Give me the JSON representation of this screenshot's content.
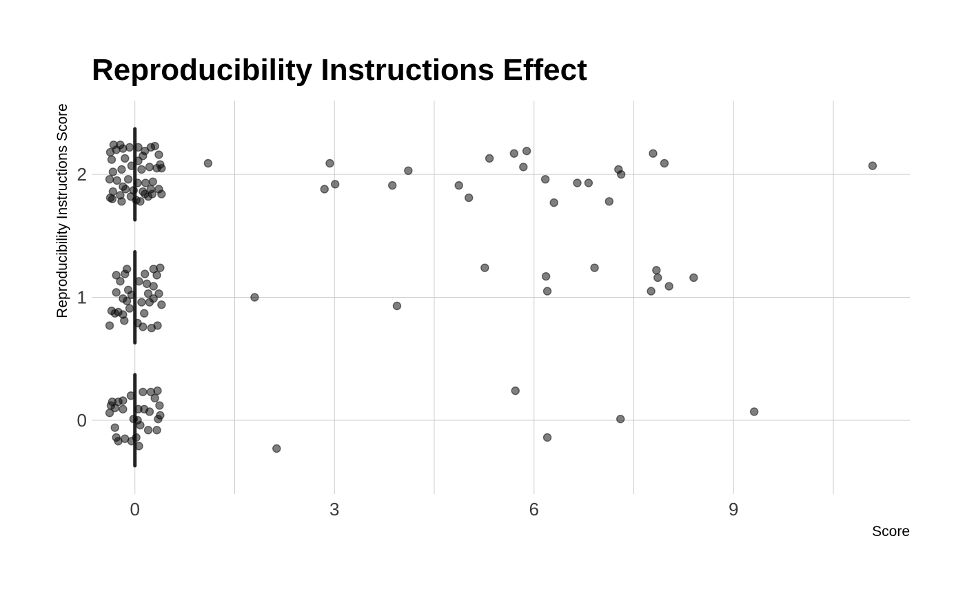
{
  "chart_data": {
    "type": "scatter",
    "title": "Reproducibility Instructions Effect",
    "xlabel": "Score",
    "ylabel": "Reproducibility Instructions Score",
    "xlim": [
      -0.65,
      11.65
    ],
    "ylim": [
      -0.6,
      2.6
    ],
    "x_major_ticks": [
      0,
      3,
      6,
      9
    ],
    "x_minor_grid": [
      1.5,
      4.5,
      7.5,
      10.5
    ],
    "y_ticks": [
      0,
      1,
      2
    ],
    "grid": true,
    "legend": "none",
    "point_color": "#000000",
    "point_opacity": 0.5,
    "median_bar_color": "#222222",
    "median_bars": [
      {
        "x": 0,
        "y_from": -0.37,
        "y_to": 0.37
      },
      {
        "x": 0,
        "y_from": 0.63,
        "y_to": 1.37
      },
      {
        "x": 0,
        "y_from": 1.63,
        "y_to": 2.37
      }
    ],
    "points": [
      {
        "x": 1.1,
        "y": 2.09
      },
      {
        "x": 2.85,
        "y": 1.88
      },
      {
        "x": 2.93,
        "y": 2.09
      },
      {
        "x": 3.01,
        "y": 1.92
      },
      {
        "x": 3.87,
        "y": 1.91
      },
      {
        "x": 4.11,
        "y": 2.03
      },
      {
        "x": 4.87,
        "y": 1.91
      },
      {
        "x": 5.02,
        "y": 1.81
      },
      {
        "x": 5.33,
        "y": 2.13
      },
      {
        "x": 5.7,
        "y": 2.17
      },
      {
        "x": 5.84,
        "y": 2.06
      },
      {
        "x": 5.89,
        "y": 2.19
      },
      {
        "x": 6.17,
        "y": 1.96
      },
      {
        "x": 6.3,
        "y": 1.77
      },
      {
        "x": 6.65,
        "y": 1.93
      },
      {
        "x": 6.82,
        "y": 1.93
      },
      {
        "x": 7.13,
        "y": 1.78
      },
      {
        "x": 7.27,
        "y": 2.04
      },
      {
        "x": 7.31,
        "y": 2.0
      },
      {
        "x": 7.79,
        "y": 2.17
      },
      {
        "x": 7.96,
        "y": 2.09
      },
      {
        "x": 11.09,
        "y": 2.07
      },
      {
        "x": 1.8,
        "y": 1.0
      },
      {
        "x": 3.94,
        "y": 0.93
      },
      {
        "x": 5.26,
        "y": 1.24
      },
      {
        "x": 6.18,
        "y": 1.17
      },
      {
        "x": 6.2,
        "y": 1.05
      },
      {
        "x": 6.91,
        "y": 1.24
      },
      {
        "x": 7.76,
        "y": 1.05
      },
      {
        "x": 7.84,
        "y": 1.22
      },
      {
        "x": 7.86,
        "y": 1.16
      },
      {
        "x": 8.03,
        "y": 1.09
      },
      {
        "x": 8.4,
        "y": 1.16
      },
      {
        "x": 2.13,
        "y": -0.23
      },
      {
        "x": 5.72,
        "y": 0.24
      },
      {
        "x": 6.2,
        "y": -0.14
      },
      {
        "x": 7.3,
        "y": 0.01
      },
      {
        "x": 9.31,
        "y": 0.07
      },
      {
        "x": -0.37,
        "y": 2.18
      },
      {
        "x": -0.32,
        "y": 2.24
      },
      {
        "x": -0.22,
        "y": 2.24
      },
      {
        "x": -0.28,
        "y": 2.2
      },
      {
        "x": -0.18,
        "y": 2.21
      },
      {
        "x": -0.08,
        "y": 2.22
      },
      {
        "x": 0.05,
        "y": 2.22
      },
      {
        "x": 0.15,
        "y": 2.19
      },
      {
        "x": 0.24,
        "y": 2.22
      },
      {
        "x": 0.3,
        "y": 2.23
      },
      {
        "x": 0.36,
        "y": 2.16
      },
      {
        "x": -0.35,
        "y": 2.12
      },
      {
        "x": -0.15,
        "y": 2.13
      },
      {
        "x": 0.05,
        "y": 2.11
      },
      {
        "x": 0.12,
        "y": 2.15
      },
      {
        "x": 0.38,
        "y": 2.08
      },
      {
        "x": -0.33,
        "y": 2.02
      },
      {
        "x": -0.2,
        "y": 2.04
      },
      {
        "x": -0.05,
        "y": 2.07
      },
      {
        "x": 0.1,
        "y": 2.04
      },
      {
        "x": 0.22,
        "y": 2.06
      },
      {
        "x": 0.33,
        "y": 2.05
      },
      {
        "x": 0.4,
        "y": 2.05
      },
      {
        "x": -0.38,
        "y": 1.96
      },
      {
        "x": -0.27,
        "y": 1.95
      },
      {
        "x": -0.1,
        "y": 1.96
      },
      {
        "x": 0.04,
        "y": 1.93
      },
      {
        "x": 0.16,
        "y": 1.93
      },
      {
        "x": 0.27,
        "y": 1.94
      },
      {
        "x": -0.18,
        "y": 1.9
      },
      {
        "x": -0.33,
        "y": 1.86
      },
      {
        "x": -0.14,
        "y": 1.88
      },
      {
        "x": -0.02,
        "y": 1.87
      },
      {
        "x": 0.12,
        "y": 1.86
      },
      {
        "x": 0.24,
        "y": 1.88
      },
      {
        "x": 0.36,
        "y": 1.88
      },
      {
        "x": -0.37,
        "y": 1.81
      },
      {
        "x": -0.22,
        "y": 1.83
      },
      {
        "x": -0.06,
        "y": 1.82
      },
      {
        "x": 0.15,
        "y": 1.84
      },
      {
        "x": 0.26,
        "y": 1.84
      },
      {
        "x": 0.4,
        "y": 1.84
      },
      {
        "x": -0.34,
        "y": 1.8
      },
      {
        "x": -0.2,
        "y": 1.78
      },
      {
        "x": 0.02,
        "y": 1.79
      },
      {
        "x": 0.08,
        "y": 1.78
      },
      {
        "x": 0.2,
        "y": 1.82
      },
      {
        "x": -0.12,
        "y": 1.23
      },
      {
        "x": 0.28,
        "y": 1.23
      },
      {
        "x": 0.38,
        "y": 1.24
      },
      {
        "x": -0.28,
        "y": 1.18
      },
      {
        "x": -0.15,
        "y": 1.19
      },
      {
        "x": 0.15,
        "y": 1.19
      },
      {
        "x": 0.33,
        "y": 1.18
      },
      {
        "x": -0.22,
        "y": 1.13
      },
      {
        "x": 0.06,
        "y": 1.13
      },
      {
        "x": 0.18,
        "y": 1.11
      },
      {
        "x": 0.28,
        "y": 1.09
      },
      {
        "x": -0.1,
        "y": 1.06
      },
      {
        "x": -0.28,
        "y": 1.04
      },
      {
        "x": -0.05,
        "y": 1.02
      },
      {
        "x": 0.2,
        "y": 1.03
      },
      {
        "x": 0.36,
        "y": 1.03
      },
      {
        "x": -0.18,
        "y": 0.99
      },
      {
        "x": 0.28,
        "y": 0.99
      },
      {
        "x": -0.12,
        "y": 0.97
      },
      {
        "x": 0.1,
        "y": 0.96
      },
      {
        "x": 0.22,
        "y": 0.96
      },
      {
        "x": 0.4,
        "y": 0.94
      },
      {
        "x": -0.08,
        "y": 0.91
      },
      {
        "x": -0.35,
        "y": 0.89
      },
      {
        "x": -0.25,
        "y": 0.88
      },
      {
        "x": -0.3,
        "y": 0.87
      },
      {
        "x": -0.18,
        "y": 0.86
      },
      {
        "x": -0.16,
        "y": 0.81
      },
      {
        "x": 0.14,
        "y": 0.87
      },
      {
        "x": -0.38,
        "y": 0.77
      },
      {
        "x": 0.04,
        "y": 0.79
      },
      {
        "x": 0.12,
        "y": 0.76
      },
      {
        "x": 0.25,
        "y": 0.75
      },
      {
        "x": 0.34,
        "y": 0.77
      },
      {
        "x": -0.34,
        "y": 0.15
      },
      {
        "x": -0.25,
        "y": 0.15
      },
      {
        "x": -0.18,
        "y": 0.16
      },
      {
        "x": -0.06,
        "y": 0.2
      },
      {
        "x": 0.12,
        "y": 0.23
      },
      {
        "x": 0.24,
        "y": 0.23
      },
      {
        "x": 0.34,
        "y": 0.24
      },
      {
        "x": 0.3,
        "y": 0.18
      },
      {
        "x": -0.36,
        "y": 0.12
      },
      {
        "x": -0.3,
        "y": 0.1
      },
      {
        "x": 0.37,
        "y": 0.12
      },
      {
        "x": -0.18,
        "y": 0.09
      },
      {
        "x": 0.05,
        "y": 0.09
      },
      {
        "x": 0.14,
        "y": 0.09
      },
      {
        "x": 0.22,
        "y": 0.07
      },
      {
        "x": -0.38,
        "y": 0.06
      },
      {
        "x": 0.38,
        "y": 0.04
      },
      {
        "x": -0.02,
        "y": 0.01
      },
      {
        "x": 0.04,
        "y": 0.0
      },
      {
        "x": 0.35,
        "y": 0.01
      },
      {
        "x": 0.08,
        "y": -0.04
      },
      {
        "x": -0.3,
        "y": -0.06
      },
      {
        "x": 0.2,
        "y": -0.08
      },
      {
        "x": 0.33,
        "y": -0.08
      },
      {
        "x": -0.28,
        "y": -0.14
      },
      {
        "x": -0.15,
        "y": -0.15
      },
      {
        "x": 0.02,
        "y": -0.14
      },
      {
        "x": -0.25,
        "y": -0.17
      },
      {
        "x": -0.05,
        "y": -0.17
      },
      {
        "x": 0.06,
        "y": -0.21
      }
    ]
  }
}
